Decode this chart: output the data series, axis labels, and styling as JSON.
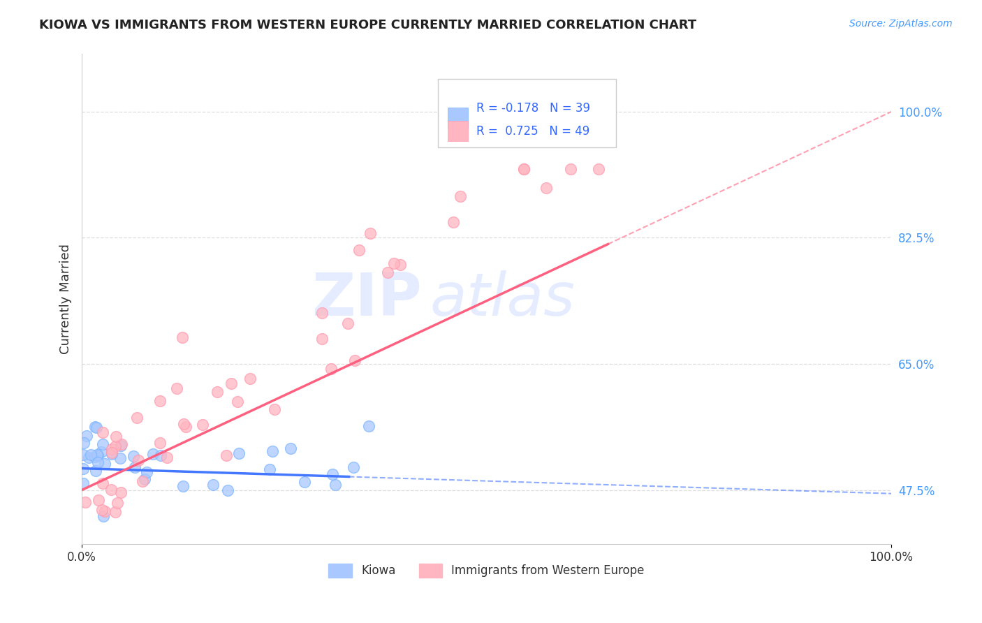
{
  "title": "KIOWA VS IMMIGRANTS FROM WESTERN EUROPE CURRENTLY MARRIED CORRELATION CHART",
  "source_text": "Source: ZipAtlas.com",
  "ylabel": "Currently Married",
  "xlim": [
    0.0,
    100.0
  ],
  "ylim": [
    40.0,
    108.0
  ],
  "x_ticks": [
    0.0,
    100.0
  ],
  "x_tick_labels": [
    "0.0%",
    "100.0%"
  ],
  "y_ticks": [
    47.5,
    65.0,
    82.5,
    100.0
  ],
  "y_tick_labels": [
    "47.5%",
    "65.0%",
    "82.5%",
    "100.0%"
  ],
  "kiowa_color": "#A8C8FF",
  "kiowa_edge_color": "#7EB6FF",
  "immigrants_color": "#FFB6C1",
  "immigrants_edge_color": "#FF9BB0",
  "kiowa_line_color": "#4477FF",
  "immigrants_line_color": "#FF6080",
  "kiowa_R": -0.178,
  "kiowa_N": 39,
  "immigrants_R": 0.725,
  "immigrants_N": 49,
  "watermark_color": "#D0DEFF",
  "background_color": "#FFFFFF",
  "grid_color": "#DDDDDD",
  "title_color": "#222222",
  "ylabel_color": "#333333",
  "ytick_color": "#4499FF",
  "xtick_color": "#333333",
  "source_color": "#4499FF",
  "legend_text_color": "#3366FF",
  "kiowa_line_y0": 50.5,
  "kiowa_line_y100": 47.0,
  "immigrants_line_y0": 47.5,
  "immigrants_line_y100": 100.0
}
